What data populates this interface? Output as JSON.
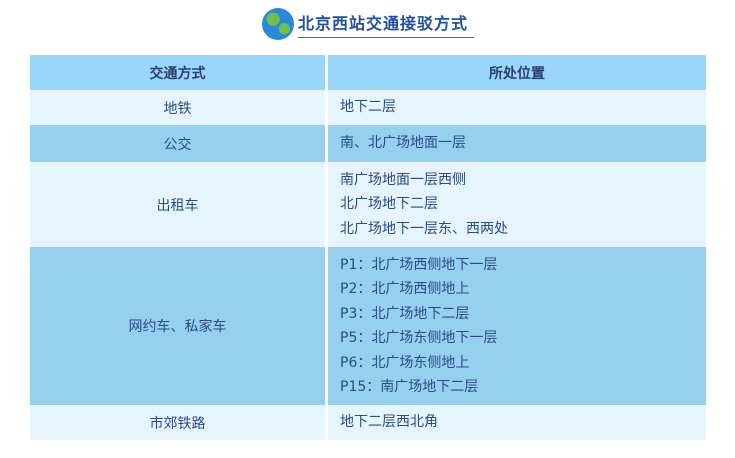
{
  "title": "北京西站交通接驳方式",
  "icon": "globe-icon",
  "headers": [
    "交通方式",
    "所处位置"
  ],
  "rows": [
    {
      "mode": "地铁",
      "locations": [
        "地下二层"
      ]
    },
    {
      "mode": "公交",
      "locations": [
        "南、北广场地面一层"
      ]
    },
    {
      "mode": "出租车",
      "locations": [
        "南广场地面一层西侧",
        "北广场地下二层",
        "北广场地下一层东、西两处"
      ]
    },
    {
      "mode": "网约车、私家车",
      "locations": [
        "P1：北广场西侧地下一层",
        "P2：北广场西侧地上",
        "P3：北广场地下二层",
        "P5：北广场东侧地下一层",
        "P6：北广场东侧地上",
        "P15：南广场地下二层"
      ]
    },
    {
      "mode": "市郊铁路",
      "locations": [
        "地下二层西北角"
      ]
    }
  ]
}
